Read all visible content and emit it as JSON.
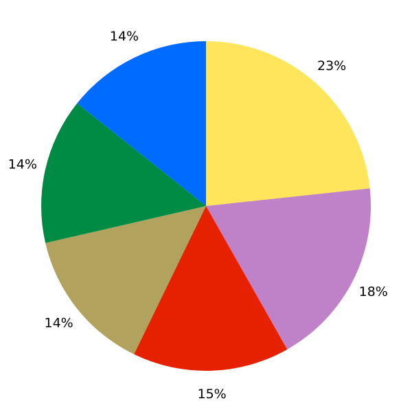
{
  "chart_data": {
    "type": "pie",
    "title": "",
    "start": "top",
    "direction": "clockwise",
    "slices": [
      {
        "value": 23.3,
        "label": "23%",
        "color": "#FFE55C"
      },
      {
        "value": 18.5,
        "label": "18%",
        "color": "#BF82C8"
      },
      {
        "value": 15.4,
        "label": "15%",
        "color": "#E62100"
      },
      {
        "value": 14.2,
        "label": "14%",
        "color": "#B1A35E"
      },
      {
        "value": 14.3,
        "label": "14%",
        "color": "#008B45"
      },
      {
        "value": 14.3,
        "label": "14%",
        "color": "#006CFF"
      }
    ]
  }
}
